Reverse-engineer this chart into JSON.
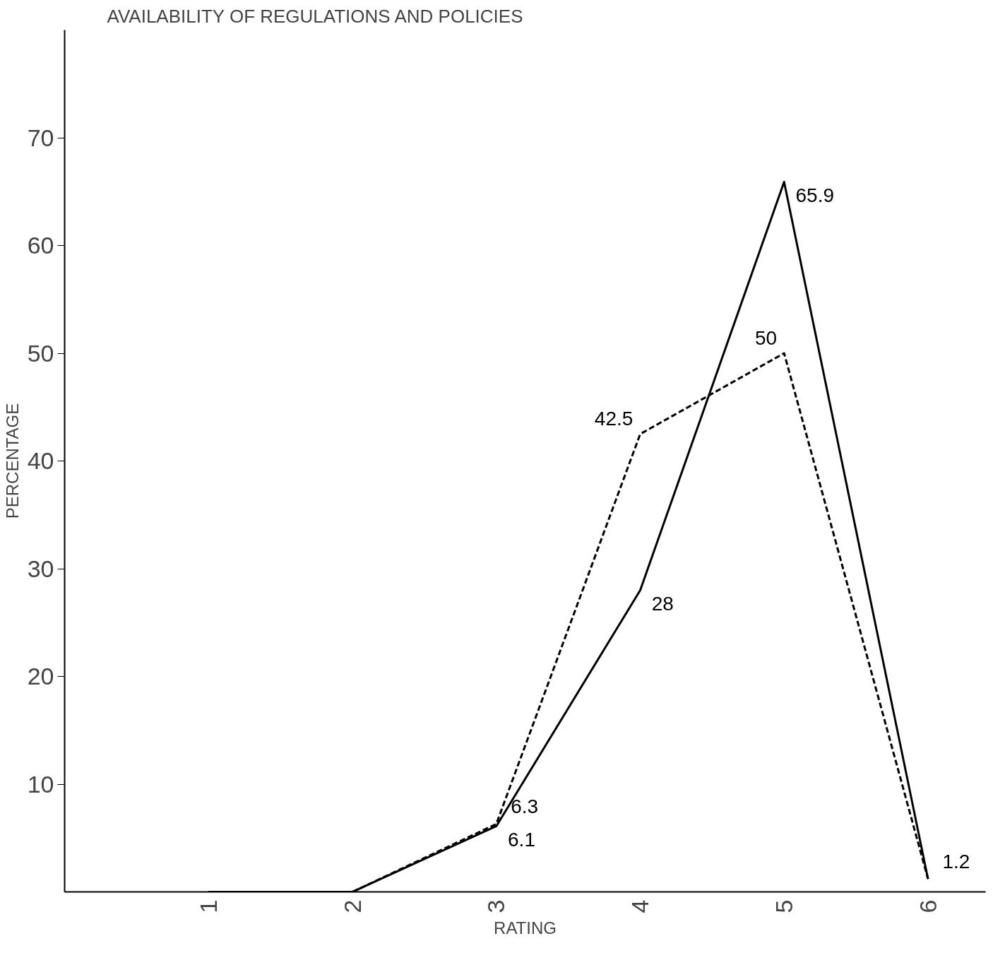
{
  "chart_data": {
    "type": "line",
    "title": "AVAILABILITY OF REGULATIONS AND POLICIES",
    "xlabel": "RATING",
    "ylabel": "PERCENTAGE",
    "categories": [
      "1",
      "2",
      "3",
      "4",
      "5",
      "6"
    ],
    "series": [
      {
        "color": "#000000",
        "values": [
          0,
          0,
          6.1,
          28,
          65.9,
          1.2
        ],
        "value_labels": [
          null,
          null,
          "6.1",
          "28",
          "65.9",
          null
        ],
        "line_style": "solid"
      },
      {
        "color": "#000000",
        "values": [
          0,
          0,
          6.3,
          42.5,
          50,
          1.2
        ],
        "value_labels": [
          null,
          null,
          "6.3",
          "42.5",
          "50",
          "1.2"
        ],
        "line_style": "dashed"
      }
    ],
    "ylim": [
      0,
      80
    ],
    "yticks": [
      10,
      20,
      30,
      40,
      50,
      60,
      70
    ],
    "grid": false,
    "marker": "none"
  }
}
